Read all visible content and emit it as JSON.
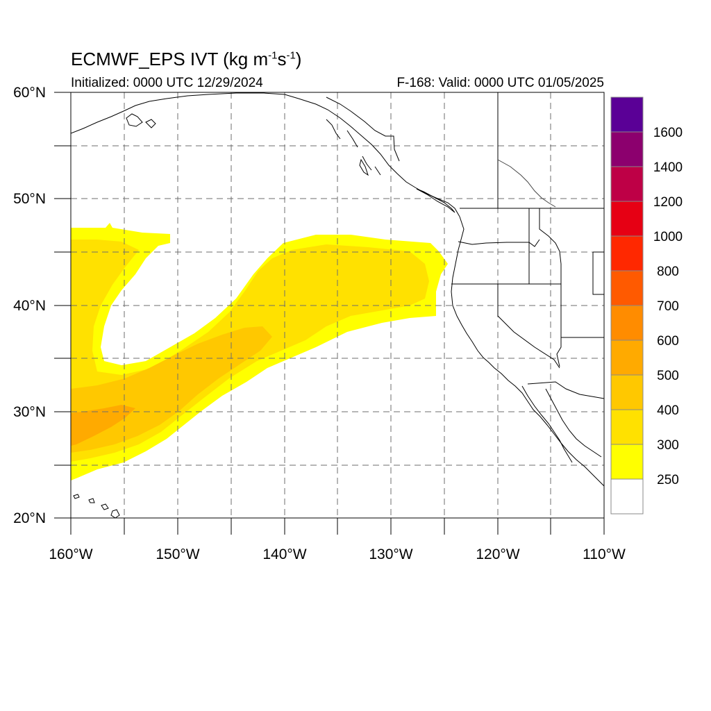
{
  "title": {
    "main": "ECMWF_EPS IVT (kg m",
    "exp1": "-1",
    "mid": "s",
    "exp2": "-1",
    "end": ")"
  },
  "initialized": "Initialized: 0000 UTC 12/29/2024",
  "valid": "F-168: Valid: 0000 UTC 01/05/2025",
  "lat_labels": [
    "20°N",
    "30°N",
    "40°N",
    "50°N",
    "60°N"
  ],
  "lon_labels": [
    "160°W",
    "150°W",
    "140°W",
    "130°W",
    "120°W",
    "110°W"
  ],
  "colorbar": {
    "levels": [
      "250",
      "300",
      "400",
      "500",
      "600",
      "700",
      "800",
      "1000",
      "1200",
      "1400",
      "1600"
    ],
    "colors": [
      "#ffffff",
      "#ffff00",
      "#ffe100",
      "#ffc800",
      "#ffaa00",
      "#ff8c00",
      "#ff5a00",
      "#ff2800",
      "#e60014",
      "#be0046",
      "#8c006e",
      "#5a0096"
    ]
  },
  "map": {
    "lon_range": [
      -160,
      -110
    ],
    "lat_range": [
      20,
      60
    ],
    "ivt_shading_colors": {
      "low": "#ffff00",
      "mid": "#ffe100",
      "high": "#ffc800",
      "peak": "#ffaa00"
    },
    "coast_color": "#000000",
    "grid": "dashed"
  }
}
